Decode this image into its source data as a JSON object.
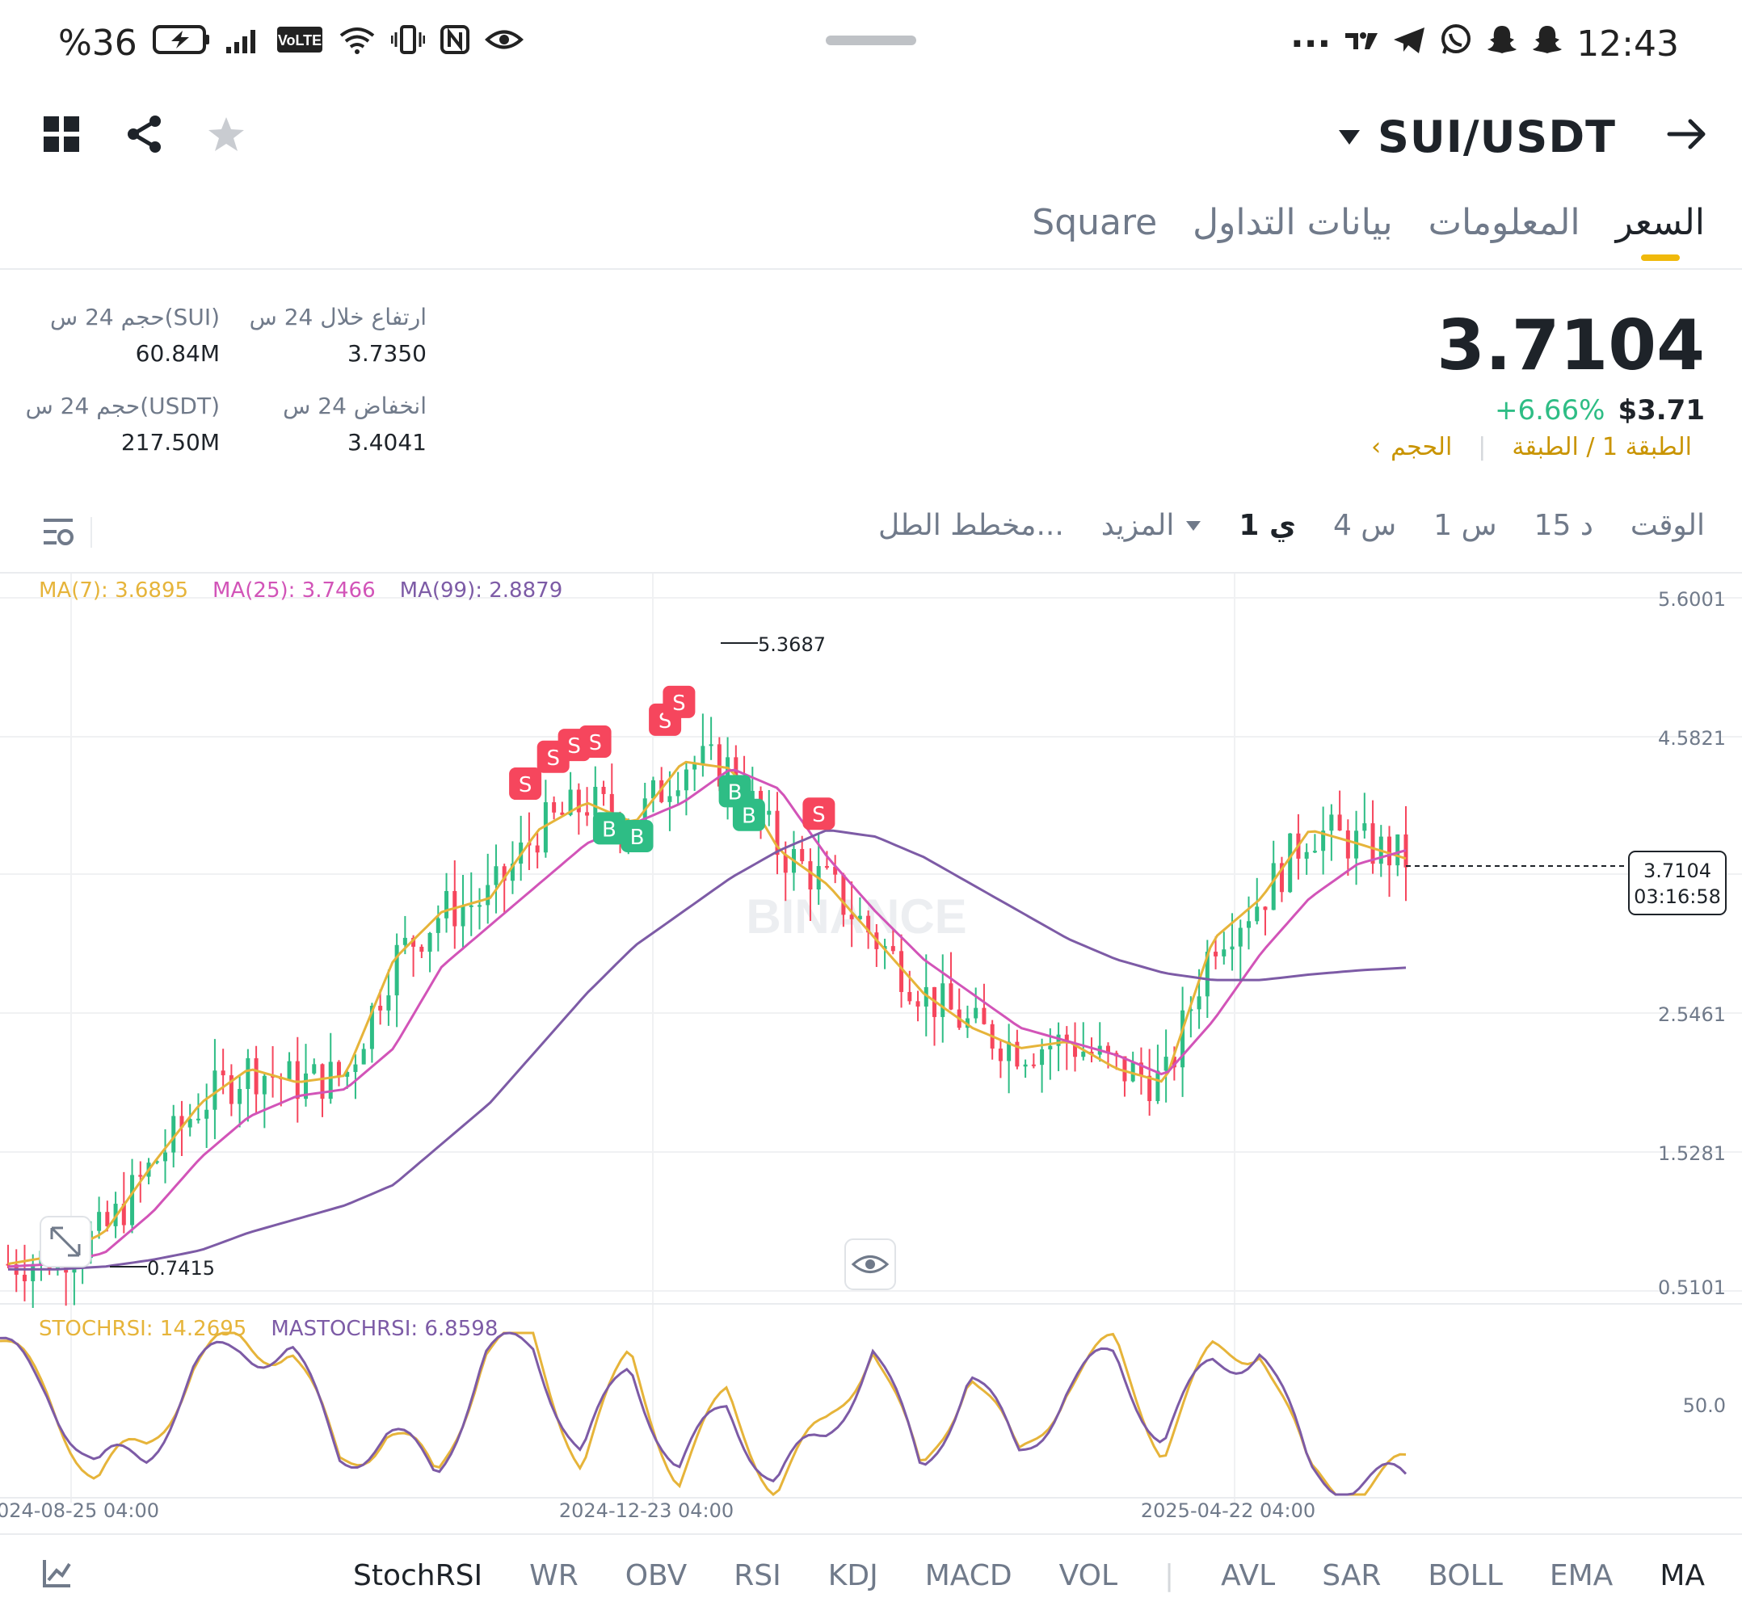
{
  "status_bar": {
    "battery": "%36",
    "time": "12:43",
    "network": "VoLTE"
  },
  "header": {
    "pair": "SUI/USDT"
  },
  "tabs": [
    "السعر",
    "المعلومات",
    "بيانات التداول",
    "Square"
  ],
  "ticker": {
    "last_price": "3.7104",
    "change_pct": "+6.66%",
    "usd_price": "$3.71",
    "layer_link": "الطبقة 1 / الطبقة",
    "volume_link": "الحجم",
    "high_label": "ارتفاع خلال 24 س",
    "high_value": "3.7350",
    "low_label": "انخفاض 24 س",
    "low_value": "3.4041",
    "vol_sui_label": "حجم 24 س(SUI)",
    "vol_sui_value": "60.84M",
    "vol_usdt_label": "حجم 24 س(USDT)",
    "vol_usdt_value": "217.50M"
  },
  "timeframes": {
    "items": [
      "الوقت",
      "15 د",
      "1 س",
      "4 س",
      "1 ي",
      "المزيد",
      "مخطط الطل..."
    ],
    "selected": "1 ي"
  },
  "legend": {
    "ma7": "MA(7): 3.6895",
    "ma25": "MA(25): 3.7466",
    "ma99": "MA(99): 2.8879",
    "stochrsi": "STOCHRSI: 14.2695",
    "mastochrsi": "MASTOCHRSI: 6.8598"
  },
  "price_axis": {
    "labels": [
      "5.6001",
      "4.5821",
      "2.5461",
      "1.5281",
      "0.5101"
    ],
    "current_price": "3.7104",
    "countdown": "03:16:58",
    "high_marker": "5.3687",
    "low_marker": "0.7415"
  },
  "rsi_axis": {
    "label": "50.0"
  },
  "time_axis": [
    "024-08-25 04:00",
    "2024-12-23 04:00",
    "2025-04-22 04:00"
  ],
  "watermark": "BINANCE",
  "indicators": {
    "items": [
      "MA",
      "EMA",
      "BOLL",
      "SAR",
      "AVL",
      "VOL",
      "MACD",
      "KDJ",
      "RSI",
      "OBV",
      "WR",
      "StochRSI"
    ],
    "active": [
      "MA",
      "StochRSI"
    ]
  },
  "colors": {
    "up": "#2ebd85",
    "down": "#f6465d",
    "ma7": "#e6b43a",
    "ma25": "#d254b8",
    "ma99": "#7d5ba6",
    "accent": "#f0b90b"
  },
  "chart_data": {
    "type": "candlestick",
    "timeframe": "1 ي",
    "ylim": [
      0.5101,
      5.6001
    ],
    "annotations": [
      {
        "label": "5.3687",
        "type": "high"
      },
      {
        "label": "0.7415",
        "type": "low"
      }
    ],
    "signals": [
      "S",
      "S",
      "S",
      "S",
      "S",
      "S",
      "B",
      "B",
      "B",
      "B",
      "S"
    ],
    "series": [
      {
        "name": "MA(7)",
        "values": [
          0.72,
          0.78,
          0.95,
          1.45,
          1.9,
          2.15,
          2.05,
          2.1,
          2.95,
          3.3,
          3.4,
          3.9,
          4.1,
          3.95,
          4.4,
          4.35,
          3.75,
          3.5,
          3.1,
          2.7,
          2.45,
          2.3,
          2.35,
          2.15,
          2.05,
          3.1,
          3.4,
          3.9,
          3.8,
          3.69
        ]
      },
      {
        "name": "MA(25)",
        "values": [
          0.7,
          0.72,
          0.8,
          1.1,
          1.5,
          1.8,
          1.95,
          2.0,
          2.3,
          2.9,
          3.2,
          3.5,
          3.8,
          3.95,
          4.1,
          4.35,
          4.2,
          3.7,
          3.3,
          2.95,
          2.7,
          2.45,
          2.35,
          2.25,
          2.1,
          2.5,
          3.0,
          3.4,
          3.65,
          3.75
        ]
      },
      {
        "name": "MA(99)",
        "values": [
          0.68,
          0.68,
          0.7,
          0.75,
          0.82,
          0.95,
          1.05,
          1.15,
          1.3,
          1.6,
          1.9,
          2.3,
          2.7,
          3.05,
          3.3,
          3.55,
          3.75,
          3.9,
          3.85,
          3.7,
          3.5,
          3.3,
          3.1,
          2.95,
          2.85,
          2.8,
          2.8,
          2.84,
          2.87,
          2.89
        ]
      }
    ],
    "stochrsi": {
      "ylabel_tick": "50.0",
      "series": [
        {
          "name": "STOCHRSI",
          "values": [
            95,
            60,
            10,
            30,
            80,
            95,
            90,
            20,
            40,
            10,
            90,
            95,
            20,
            85,
            10,
            60,
            5,
            40,
            95,
            10,
            80,
            20,
            70,
            90,
            30,
            85,
            95,
            10,
            5,
            14
          ]
        },
        {
          "name": "MASTOCHRSI",
          "values": [
            90,
            65,
            15,
            25,
            75,
            92,
            88,
            25,
            35,
            15,
            85,
            92,
            25,
            80,
            15,
            55,
            8,
            35,
            90,
            15,
            75,
            25,
            65,
            85,
            35,
            80,
            92,
            15,
            8,
            7
          ]
        }
      ]
    }
  }
}
